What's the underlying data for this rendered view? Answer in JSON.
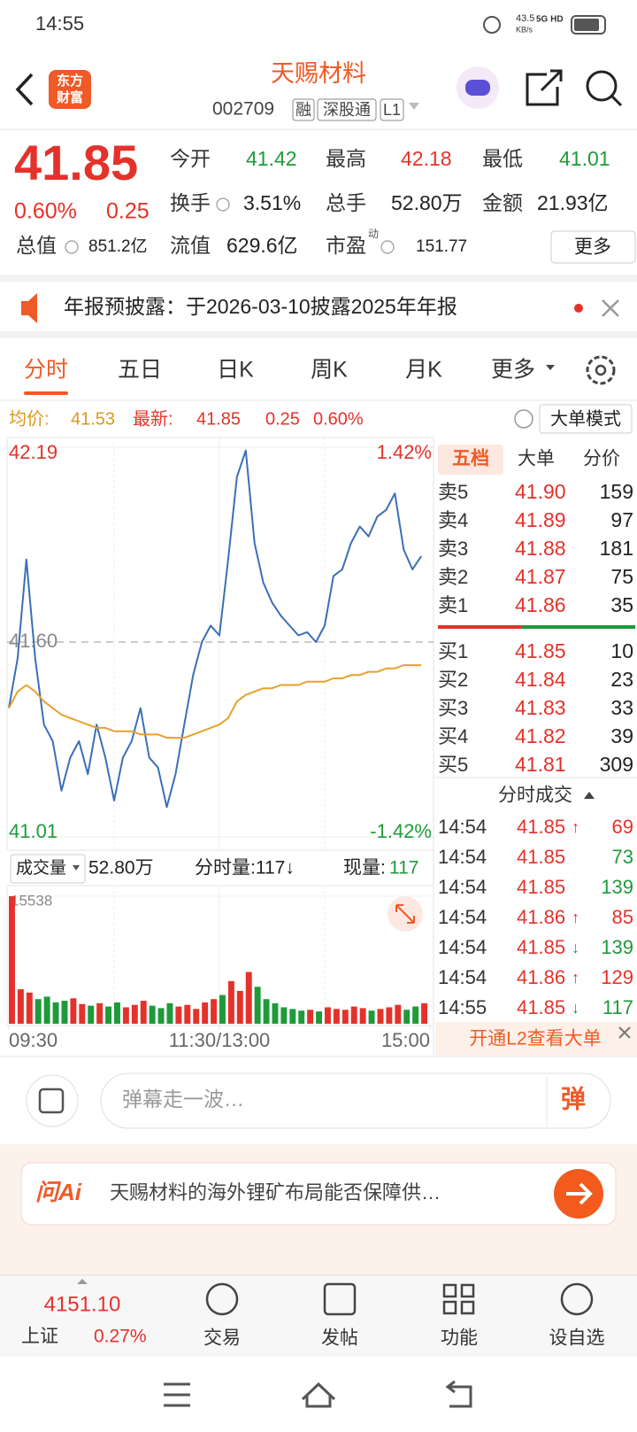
{
  "status_bar": {
    "time": "14:55",
    "net_speed": "43.5",
    "net_speed_unit": "KB/s",
    "network": "5G HD"
  },
  "header": {
    "logo": [
      "东方",
      "财富"
    ],
    "title": "天赐材料",
    "code": "002709",
    "tags": [
      "融",
      "深股通",
      "L1"
    ]
  },
  "quote": {
    "price": "41.85",
    "change_percent": "0.60%",
    "change": "0.25",
    "stats": [
      [
        {
          "label": "今开",
          "value": "41.42",
          "color": "#1f9a3a"
        },
        {
          "label": "最高",
          "value": "42.18",
          "color": "#e4322b"
        },
        {
          "label": "最低",
          "value": "41.01",
          "color": "#1f9a3a"
        }
      ],
      [
        {
          "label": "换手",
          "value": "3.51%"
        },
        {
          "label": "总手",
          "value": "52.80万"
        },
        {
          "label": "金额",
          "value": "21.93亿"
        }
      ],
      [
        {
          "label": "总值",
          "value": "851.2亿"
        },
        {
          "label": "流值",
          "value": "629.6亿"
        },
        {
          "label": "市盈",
          "superscript": "动",
          "value": "151.77"
        }
      ]
    ],
    "more_button": "更多"
  },
  "notice": {
    "text": "年报预披露：于2026-03-10披露2025年年报"
  },
  "tabs": [
    "分时",
    "五日",
    "日K",
    "周K",
    "月K",
    "更多"
  ],
  "info_bar": {
    "avg_label": "均价:",
    "avg": "41.53",
    "latest_label": "最新:",
    "latest": "41.85",
    "change": "0.25",
    "change_percent": "0.60%",
    "mode_button": "大单模式"
  },
  "chart_data": [
    {
      "type": "line",
      "x": [
        0,
        5,
        10,
        15,
        20,
        25,
        30,
        35,
        40,
        45,
        50,
        55,
        60,
        65,
        70,
        75,
        80,
        85,
        90,
        95,
        100,
        105,
        110,
        115,
        120,
        125,
        130,
        135,
        140,
        145,
        150,
        155,
        160,
        165,
        170,
        175,
        180,
        185,
        190,
        195,
        200,
        205,
        210,
        215,
        220,
        225,
        230,
        235
      ],
      "series": [
        {
          "color": "#3b6fb6",
          "values": [
            41.4,
            41.55,
            41.85,
            41.55,
            41.35,
            41.3,
            41.15,
            41.25,
            41.3,
            41.2,
            41.35,
            41.25,
            41.12,
            41.25,
            41.3,
            41.4,
            41.25,
            41.22,
            41.1,
            41.2,
            41.35,
            41.5,
            41.6,
            41.65,
            41.62,
            41.85,
            42.1,
            42.18,
            41.9,
            41.78,
            41.72,
            41.68,
            41.65,
            41.62,
            41.63,
            41.6,
            41.65,
            41.8,
            41.82,
            41.9,
            41.95,
            41.92,
            41.98,
            42.0,
            42.05,
            41.88,
            41.82,
            41.86
          ]
        },
        {
          "color": "#e8a12a",
          "values": [
            41.4,
            41.45,
            41.47,
            41.45,
            41.42,
            41.4,
            41.38,
            41.37,
            41.36,
            41.35,
            41.34,
            41.34,
            41.33,
            41.33,
            41.33,
            41.32,
            41.32,
            41.32,
            41.31,
            41.31,
            41.31,
            41.32,
            41.33,
            41.34,
            41.35,
            41.37,
            41.42,
            41.44,
            41.45,
            41.46,
            41.46,
            41.47,
            41.47,
            41.47,
            41.48,
            41.48,
            41.48,
            41.49,
            41.49,
            41.5,
            41.5,
            41.51,
            41.51,
            41.52,
            41.52,
            41.53,
            41.53,
            41.53
          ]
        }
      ],
      "xlim": [
        0,
        240
      ],
      "ylim": [
        41.01,
        42.19
      ],
      "yticks": [
        42.19,
        {
          "value": 41.6,
          "label": "41.60"
        },
        41.01
      ],
      "y2lim": [
        -1.42,
        1.42
      ],
      "y2ticks": [
        {
          "value": 1.42,
          "label": "1.42%"
        },
        {
          "value": -1.42,
          "label": "-1.42%"
        }
      ]
    },
    {
      "type": "bar",
      "x": [
        0,
        5,
        10,
        15,
        20,
        25,
        30,
        35,
        40,
        45,
        50,
        55,
        60,
        65,
        70,
        75,
        80,
        85,
        90,
        95,
        100,
        105,
        110,
        115,
        120,
        125,
        130,
        135,
        140,
        145,
        150,
        155,
        160,
        165,
        170,
        175,
        180,
        185,
        190,
        195,
        200,
        205,
        210,
        215,
        220,
        225,
        230,
        235
      ],
      "values": [
        15538,
        4200,
        3800,
        3000,
        3300,
        2600,
        2800,
        3100,
        2400,
        2200,
        2500,
        2100,
        2600,
        2000,
        2300,
        2800,
        2200,
        1900,
        2500,
        2100,
        2300,
        1800,
        2600,
        3000,
        3500,
        5200,
        4000,
        6300,
        4500,
        3000,
        2500,
        2000,
        1800,
        1600,
        1700,
        1500,
        2000,
        1800,
        1700,
        2100,
        1900,
        1600,
        1800,
        2000,
        2300,
        1700,
        2100,
        2500
      ],
      "colors": [
        "#e4322b",
        "#e4322b",
        "#e4322b",
        "#1f9a3a",
        "#1f9a3a",
        "#1f9a3a",
        "#1f9a3a",
        "#e4322b",
        "#e4322b",
        "#1f9a3a",
        "#e4322b",
        "#1f9a3a",
        "#1f9a3a",
        "#e4322b",
        "#e4322b",
        "#e4322b",
        "#1f9a3a",
        "#1f9a3a",
        "#1f9a3a",
        "#e4322b",
        "#e4322b",
        "#e4322b",
        "#e4322b",
        "#e4322b",
        "#1f9a3a",
        "#e4322b",
        "#e4322b",
        "#e4322b",
        "#1f9a3a",
        "#1f9a3a",
        "#1f9a3a",
        "#1f9a3a",
        "#1f9a3a",
        "#1f9a3a",
        "#e4322b",
        "#1f9a3a",
        "#e4322b",
        "#e4322b",
        "#e4322b",
        "#e4322b",
        "#e4322b",
        "#1f9a3a",
        "#e4322b",
        "#e4322b",
        "#e4322b",
        "#1f9a3a",
        "#1f9a3a",
        "#e4322b"
      ],
      "xlim": [
        0,
        240
      ],
      "ylim": [
        0,
        15538
      ],
      "yticks": [
        15538
      ],
      "xticks": [
        {
          "value": 0,
          "label": "09:30"
        },
        {
          "value": 120,
          "label": "11:30/13:00"
        },
        {
          "value": 240,
          "label": "15:00"
        }
      ]
    }
  ],
  "volume_bar": {
    "selector": "成交量",
    "total": "52.80万",
    "minute_volume": "分时量:117↓",
    "current_label": "现量:",
    "current": "117"
  },
  "order_book": {
    "tabs": [
      "五档",
      "大单",
      "分价"
    ],
    "asks": [
      {
        "label": "卖5",
        "price": "41.90",
        "volume": "159"
      },
      {
        "label": "卖4",
        "price": "41.89",
        "volume": "97"
      },
      {
        "label": "卖3",
        "price": "41.88",
        "volume": "181"
      },
      {
        "label": "卖2",
        "price": "41.87",
        "volume": "75"
      },
      {
        "label": "卖1",
        "price": "41.86",
        "volume": "35"
      }
    ],
    "bids": [
      {
        "label": "买1",
        "price": "41.85",
        "volume": "10"
      },
      {
        "label": "买2",
        "price": "41.84",
        "volume": "23"
      },
      {
        "label": "买3",
        "price": "41.83",
        "volume": "33"
      },
      {
        "label": "买4",
        "price": "41.82",
        "volume": "39"
      },
      {
        "label": "买5",
        "price": "41.81",
        "volume": "309"
      }
    ]
  },
  "trades": {
    "title": "分时成交",
    "rows": [
      {
        "time": "14:54",
        "price": "41.85",
        "arrow": "↑",
        "volume": "69",
        "color": "#e4322b"
      },
      {
        "time": "14:54",
        "price": "41.85",
        "volume": "73",
        "color": "#1f9a3a"
      },
      {
        "time": "14:54",
        "price": "41.85",
        "volume": "139",
        "color": "#1f9a3a"
      },
      {
        "time": "14:54",
        "price": "41.86",
        "arrow": "↑",
        "volume": "85",
        "color": "#e4322b"
      },
      {
        "time": "14:54",
        "price": "41.85",
        "arrow": "↓",
        "volume": "139",
        "color": "#1f9a3a"
      },
      {
        "time": "14:54",
        "price": "41.86",
        "arrow": "↑",
        "volume": "129",
        "color": "#e4322b"
      },
      {
        "time": "14:55",
        "price": "41.85",
        "arrow": "↓",
        "volume": "117",
        "color": "#1f9a3a"
      }
    ],
    "banner": "开通L2查看大单"
  },
  "comment": {
    "placeholder": "弹幕走一波…",
    "button": "弹"
  },
  "ai": {
    "logo": "问Ai",
    "text": "天赐材料的海外锂矿布局能否保障供…"
  },
  "bottom_nav": {
    "index_value": "4151.10",
    "index_name": "上证",
    "index_change": "0.27%",
    "items": [
      "交易",
      "发帖",
      "功能",
      "设自选"
    ]
  }
}
